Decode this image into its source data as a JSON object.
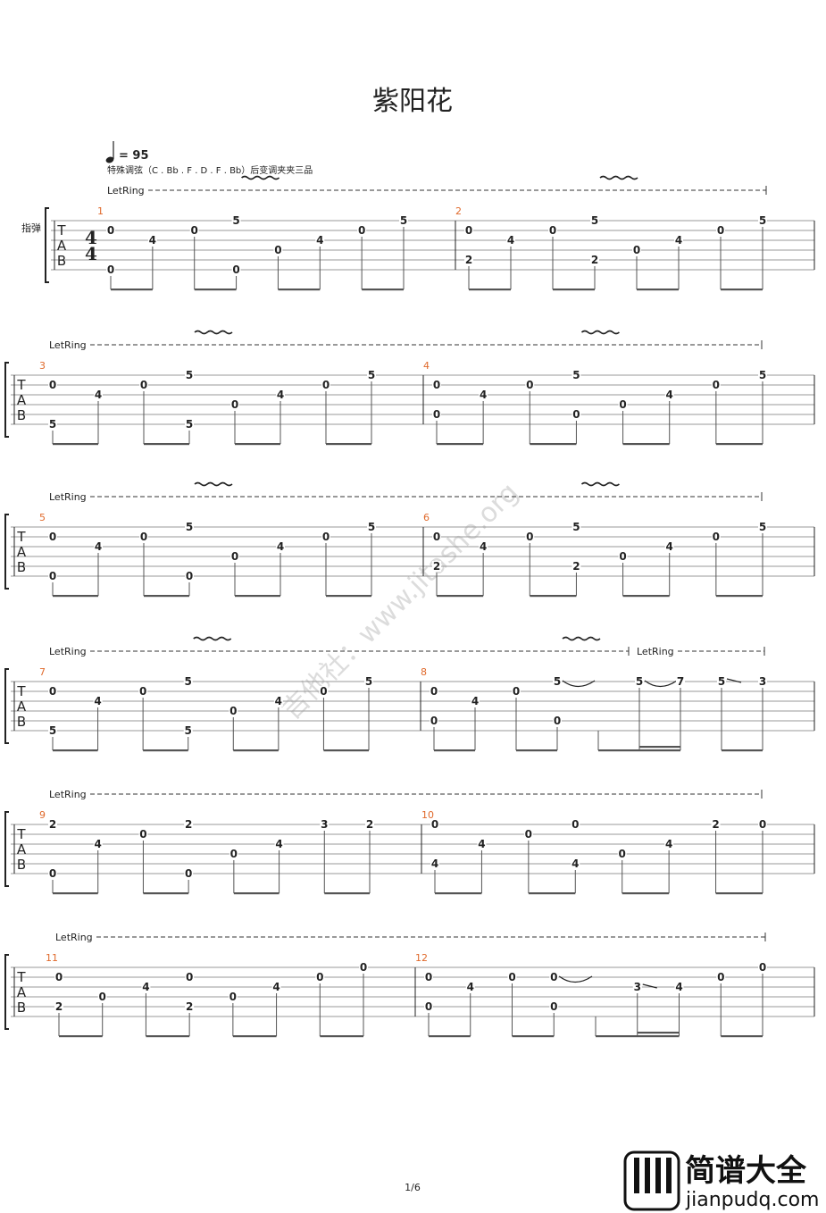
{
  "title": "紫阳花",
  "tempo": "= 95",
  "tuning_note": "特殊调弦（C . Bb . F . D . F . Bb）后变调夹夹三品",
  "instrument": "指弹",
  "clef": [
    "T",
    "A",
    "B"
  ],
  "time_signature": [
    4,
    4
  ],
  "let_ring": "LetRing",
  "measures": [
    {
      "number": 1,
      "events": [
        {
          "frets": [
            null,
            0,
            null,
            null,
            null,
            0
          ]
        },
        {
          "frets": [
            null,
            null,
            4,
            null,
            null,
            null
          ]
        },
        {
          "frets": [
            null,
            0,
            null,
            null,
            null,
            null
          ]
        },
        {
          "frets": [
            5,
            null,
            null,
            null,
            null,
            0
          ],
          "vibrato": true
        },
        {
          "frets": [
            null,
            null,
            null,
            0,
            null,
            null
          ]
        },
        {
          "frets": [
            null,
            null,
            4,
            null,
            null,
            null
          ]
        },
        {
          "frets": [
            null,
            0,
            null,
            null,
            null,
            null
          ]
        },
        {
          "frets": [
            5,
            null,
            null,
            null,
            null,
            null
          ]
        }
      ]
    },
    {
      "number": 2,
      "events": [
        {
          "frets": [
            null,
            0,
            null,
            null,
            2,
            null
          ]
        },
        {
          "frets": [
            null,
            null,
            4,
            null,
            null,
            null
          ]
        },
        {
          "frets": [
            null,
            0,
            null,
            null,
            null,
            null
          ]
        },
        {
          "frets": [
            5,
            null,
            null,
            null,
            2,
            null
          ],
          "vibrato": true
        },
        {
          "frets": [
            null,
            null,
            null,
            0,
            null,
            null
          ]
        },
        {
          "frets": [
            null,
            null,
            4,
            null,
            null,
            null
          ]
        },
        {
          "frets": [
            null,
            0,
            null,
            null,
            null,
            null
          ]
        },
        {
          "frets": [
            5,
            null,
            null,
            null,
            null,
            null
          ]
        }
      ]
    },
    {
      "number": 3,
      "events": [
        {
          "frets": [
            null,
            0,
            null,
            null,
            null,
            5
          ]
        },
        {
          "frets": [
            null,
            null,
            4,
            null,
            null,
            null
          ]
        },
        {
          "frets": [
            null,
            0,
            null,
            null,
            null,
            null
          ]
        },
        {
          "frets": [
            5,
            null,
            null,
            null,
            null,
            5
          ],
          "vibrato": true
        },
        {
          "frets": [
            null,
            null,
            null,
            0,
            null,
            null
          ]
        },
        {
          "frets": [
            null,
            null,
            4,
            null,
            null,
            null
          ]
        },
        {
          "frets": [
            null,
            0,
            null,
            null,
            null,
            null
          ]
        },
        {
          "frets": [
            5,
            null,
            null,
            null,
            null,
            null
          ]
        }
      ]
    },
    {
      "number": 4,
      "events": [
        {
          "frets": [
            null,
            0,
            null,
            null,
            0,
            null
          ]
        },
        {
          "frets": [
            null,
            null,
            4,
            null,
            null,
            null
          ]
        },
        {
          "frets": [
            null,
            0,
            null,
            null,
            null,
            null
          ]
        },
        {
          "frets": [
            5,
            null,
            null,
            null,
            0,
            null
          ],
          "vibrato": true
        },
        {
          "frets": [
            null,
            null,
            null,
            0,
            null,
            null
          ]
        },
        {
          "frets": [
            null,
            null,
            4,
            null,
            null,
            null
          ]
        },
        {
          "frets": [
            null,
            0,
            null,
            null,
            null,
            null
          ]
        },
        {
          "frets": [
            5,
            null,
            null,
            null,
            null,
            null
          ]
        }
      ]
    },
    {
      "number": 5,
      "events": [
        {
          "frets": [
            null,
            0,
            null,
            null,
            null,
            0
          ]
        },
        {
          "frets": [
            null,
            null,
            4,
            null,
            null,
            null
          ]
        },
        {
          "frets": [
            null,
            0,
            null,
            null,
            null,
            null
          ]
        },
        {
          "frets": [
            5,
            null,
            null,
            null,
            null,
            0
          ],
          "vibrato": true
        },
        {
          "frets": [
            null,
            null,
            null,
            0,
            null,
            null
          ]
        },
        {
          "frets": [
            null,
            null,
            4,
            null,
            null,
            null
          ]
        },
        {
          "frets": [
            null,
            0,
            null,
            null,
            null,
            null
          ]
        },
        {
          "frets": [
            5,
            null,
            null,
            null,
            null,
            null
          ]
        }
      ]
    },
    {
      "number": 6,
      "events": [
        {
          "frets": [
            null,
            0,
            null,
            null,
            2,
            null
          ]
        },
        {
          "frets": [
            null,
            null,
            4,
            null,
            null,
            null
          ]
        },
        {
          "frets": [
            null,
            0,
            null,
            null,
            null,
            null
          ]
        },
        {
          "frets": [
            5,
            null,
            null,
            null,
            2,
            null
          ],
          "vibrato": true
        },
        {
          "frets": [
            null,
            null,
            null,
            0,
            null,
            null
          ]
        },
        {
          "frets": [
            null,
            null,
            4,
            null,
            null,
            null
          ]
        },
        {
          "frets": [
            null,
            0,
            null,
            null,
            null,
            null
          ]
        },
        {
          "frets": [
            5,
            null,
            null,
            null,
            null,
            null
          ]
        }
      ]
    },
    {
      "number": 7,
      "events": [
        {
          "frets": [
            null,
            0,
            null,
            null,
            null,
            5
          ]
        },
        {
          "frets": [
            null,
            null,
            4,
            null,
            null,
            null
          ]
        },
        {
          "frets": [
            null,
            0,
            null,
            null,
            null,
            null
          ]
        },
        {
          "frets": [
            5,
            null,
            null,
            null,
            null,
            5
          ],
          "vibrato": true
        },
        {
          "frets": [
            null,
            null,
            null,
            0,
            null,
            null
          ]
        },
        {
          "frets": [
            null,
            null,
            4,
            null,
            null,
            null
          ]
        },
        {
          "frets": [
            null,
            0,
            null,
            null,
            null,
            null
          ]
        },
        {
          "frets": [
            5,
            null,
            null,
            null,
            null,
            null
          ]
        }
      ]
    },
    {
      "number": 8,
      "events": [
        {
          "frets": [
            null,
            0,
            null,
            null,
            0,
            null
          ]
        },
        {
          "frets": [
            null,
            null,
            4,
            null,
            null,
            null
          ]
        },
        {
          "frets": [
            null,
            0,
            null,
            null,
            null,
            null
          ]
        },
        {
          "frets": [
            5,
            null,
            null,
            null,
            0,
            null
          ],
          "vibrato": true,
          "link": "tie"
        },
        {
          "frets": [
            null,
            null,
            null,
            null,
            null,
            null
          ]
        },
        {
          "frets": [
            5,
            null,
            null,
            null,
            null,
            null
          ],
          "duration": 16,
          "link": "tie",
          "let_ring_start": true
        },
        {
          "frets": [
            7,
            null,
            null,
            null,
            null,
            null
          ],
          "duration": 16
        },
        {
          "frets": [
            5,
            null,
            null,
            null,
            null,
            null
          ],
          "link": "slide"
        },
        {
          "frets": [
            3,
            null,
            null,
            null,
            null,
            null
          ]
        }
      ]
    },
    {
      "number": 9,
      "events": [
        {
          "frets": [
            2,
            null,
            null,
            null,
            null,
            0
          ]
        },
        {
          "frets": [
            null,
            null,
            4,
            null,
            null,
            null
          ]
        },
        {
          "frets": [
            null,
            0,
            null,
            null,
            null,
            null
          ]
        },
        {
          "frets": [
            2,
            null,
            null,
            null,
            null,
            0
          ]
        },
        {
          "frets": [
            null,
            null,
            null,
            0,
            null,
            null
          ]
        },
        {
          "frets": [
            null,
            null,
            4,
            null,
            null,
            null
          ]
        },
        {
          "frets": [
            3,
            null,
            null,
            null,
            null,
            null
          ]
        },
        {
          "frets": [
            2,
            null,
            null,
            null,
            null,
            null
          ]
        }
      ]
    },
    {
      "number": 10,
      "events": [
        {
          "frets": [
            0,
            null,
            null,
            null,
            4,
            null
          ]
        },
        {
          "frets": [
            null,
            null,
            4,
            null,
            null,
            null
          ]
        },
        {
          "frets": [
            null,
            0,
            null,
            null,
            null,
            null
          ]
        },
        {
          "frets": [
            0,
            null,
            null,
            null,
            4,
            null
          ]
        },
        {
          "frets": [
            null,
            null,
            null,
            0,
            null,
            null
          ]
        },
        {
          "frets": [
            null,
            null,
            4,
            null,
            null,
            null
          ]
        },
        {
          "frets": [
            2,
            null,
            null,
            null,
            null,
            null
          ]
        },
        {
          "frets": [
            0,
            null,
            null,
            null,
            null,
            null
          ]
        }
      ]
    },
    {
      "number": 11,
      "events": [
        {
          "frets": [
            null,
            0,
            null,
            null,
            2,
            null
          ]
        },
        {
          "frets": [
            null,
            null,
            null,
            0,
            null,
            null
          ]
        },
        {
          "frets": [
            null,
            null,
            4,
            null,
            null,
            null
          ]
        },
        {
          "frets": [
            null,
            0,
            null,
            null,
            2,
            null
          ]
        },
        {
          "frets": [
            null,
            null,
            null,
            0,
            null,
            null
          ]
        },
        {
          "frets": [
            null,
            null,
            4,
            null,
            null,
            null
          ]
        },
        {
          "frets": [
            null,
            0,
            null,
            null,
            null,
            null
          ]
        },
        {
          "frets": [
            0,
            null,
            null,
            null,
            null,
            null
          ]
        }
      ]
    },
    {
      "number": 12,
      "events": [
        {
          "frets": [
            null,
            0,
            null,
            null,
            0,
            null
          ]
        },
        {
          "frets": [
            null,
            null,
            4,
            null,
            null,
            null
          ]
        },
        {
          "frets": [
            null,
            0,
            null,
            null,
            null,
            null
          ]
        },
        {
          "frets": [
            null,
            0,
            null,
            null,
            0,
            null
          ],
          "link": "tie"
        },
        {
          "frets": [
            null,
            null,
            null,
            null,
            null,
            null
          ]
        },
        {
          "frets": [
            null,
            null,
            3,
            null,
            null,
            null
          ],
          "duration": 16,
          "link": "slide"
        },
        {
          "frets": [
            null,
            null,
            4,
            null,
            null,
            null
          ],
          "duration": 16
        },
        {
          "frets": [
            null,
            0,
            null,
            null,
            null,
            null
          ]
        },
        {
          "frets": [
            0,
            null,
            null,
            null,
            null,
            null
          ]
        }
      ]
    }
  ],
  "page": "1/6",
  "watermark": "吉他社：www.jitashe.org",
  "logo": {
    "title": "简谱大全",
    "url": "jianpudq.com"
  }
}
